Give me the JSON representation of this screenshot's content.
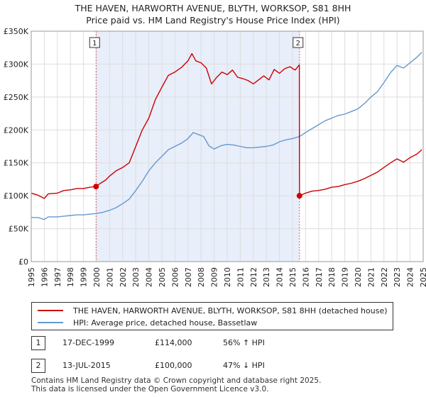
{
  "chart_data": {
    "type": "line",
    "title": "THE HAVEN, HARWORTH AVENUE, BLYTH, WORKSOP, S81 8HH",
    "subtitle": "Price paid vs. HM Land Registry's House Price Index (HPI)",
    "xlabel": "",
    "ylabel": "",
    "xlim": [
      1995,
      2025
    ],
    "ylim": [
      0,
      350000
    ],
    "y_ticks": [
      0,
      50000,
      100000,
      150000,
      200000,
      250000,
      300000,
      350000
    ],
    "y_tick_labels": [
      "£0",
      "£50K",
      "£100K",
      "£150K",
      "£200K",
      "£250K",
      "£300K",
      "£350K"
    ],
    "x_ticks": [
      1995,
      1996,
      1997,
      1998,
      1999,
      2000,
      2001,
      2002,
      2003,
      2004,
      2005,
      2006,
      2007,
      2008,
      2009,
      2010,
      2011,
      2012,
      2013,
      2014,
      2015,
      2016,
      2017,
      2018,
      2019,
      2020,
      2021,
      2022,
      2023,
      2024,
      2025
    ],
    "x_tick_labels": [
      "1995",
      "1996",
      "1997",
      "1998",
      "1999",
      "2000",
      "2001",
      "2002",
      "2003",
      "2004",
      "2005",
      "2006",
      "2007",
      "2008",
      "2009",
      "2010",
      "2011",
      "2012",
      "2013",
      "2014",
      "2015",
      "2016",
      "2017",
      "2018",
      "2019",
      "2020",
      "2021",
      "2022",
      "2023",
      "2024",
      "2025"
    ],
    "shaded_region": [
      1999.96,
      2015.53
    ],
    "series": [
      {
        "name": "THE HAVEN, HARWORTH AVENUE, BLYTH, WORKSOP, S81 8HH (detached house)",
        "color": "#cc0000",
        "points": [
          [
            1995.0,
            104000
          ],
          [
            1995.5,
            101000
          ],
          [
            1996.0,
            96000
          ],
          [
            1996.3,
            103000
          ],
          [
            1997.0,
            104000
          ],
          [
            1997.5,
            108000
          ],
          [
            1998.0,
            109000
          ],
          [
            1998.5,
            111000
          ],
          [
            1999.0,
            111000
          ],
          [
            1999.5,
            113000
          ],
          [
            1999.96,
            114000
          ],
          [
            2000.3,
            119000
          ],
          [
            2000.7,
            124000
          ],
          [
            2001.0,
            130000
          ],
          [
            2001.5,
            138000
          ],
          [
            2002.0,
            143000
          ],
          [
            2002.5,
            150000
          ],
          [
            2003.0,
            175000
          ],
          [
            2003.5,
            200000
          ],
          [
            2004.0,
            218000
          ],
          [
            2004.5,
            246000
          ],
          [
            2005.0,
            265000
          ],
          [
            2005.5,
            283000
          ],
          [
            2006.0,
            288000
          ],
          [
            2006.5,
            295000
          ],
          [
            2007.0,
            305000
          ],
          [
            2007.3,
            316000
          ],
          [
            2007.6,
            305000
          ],
          [
            2008.0,
            302000
          ],
          [
            2008.4,
            294000
          ],
          [
            2008.8,
            270000
          ],
          [
            2009.2,
            280000
          ],
          [
            2009.6,
            288000
          ],
          [
            2010.0,
            284000
          ],
          [
            2010.4,
            291000
          ],
          [
            2010.8,
            280000
          ],
          [
            2011.2,
            278000
          ],
          [
            2011.6,
            275000
          ],
          [
            2012.0,
            270000
          ],
          [
            2012.4,
            276000
          ],
          [
            2012.8,
            282000
          ],
          [
            2013.2,
            276000
          ],
          [
            2013.6,
            292000
          ],
          [
            2014.0,
            286000
          ],
          [
            2014.4,
            293000
          ],
          [
            2014.8,
            296000
          ],
          [
            2015.2,
            291000
          ],
          [
            2015.52,
            299000
          ],
          [
            2015.53,
            100000
          ],
          [
            2016.0,
            104000
          ],
          [
            2016.5,
            107000
          ],
          [
            2017.0,
            108000
          ],
          [
            2017.5,
            110000
          ],
          [
            2018.0,
            113000
          ],
          [
            2018.5,
            114000
          ],
          [
            2019.0,
            117000
          ],
          [
            2019.5,
            119000
          ],
          [
            2020.0,
            122000
          ],
          [
            2020.5,
            126000
          ],
          [
            2021.0,
            131000
          ],
          [
            2021.5,
            136000
          ],
          [
            2022.0,
            143000
          ],
          [
            2022.5,
            150000
          ],
          [
            2023.0,
            156000
          ],
          [
            2023.5,
            151000
          ],
          [
            2024.0,
            158000
          ],
          [
            2024.5,
            163000
          ],
          [
            2024.9,
            170000
          ]
        ]
      },
      {
        "name": "HPI: Average price, detached house, Bassetlaw",
        "color": "#6699cc",
        "points": [
          [
            1995.0,
            67000
          ],
          [
            1995.5,
            67000
          ],
          [
            1996.0,
            64000
          ],
          [
            1996.3,
            68000
          ],
          [
            1997.0,
            68000
          ],
          [
            1997.5,
            69000
          ],
          [
            1998.0,
            70000
          ],
          [
            1998.5,
            71000
          ],
          [
            1999.0,
            71000
          ],
          [
            1999.5,
            72000
          ],
          [
            1999.96,
            73000
          ],
          [
            2000.5,
            75000
          ],
          [
            2001.0,
            78000
          ],
          [
            2001.5,
            82000
          ],
          [
            2002.0,
            88000
          ],
          [
            2002.5,
            95000
          ],
          [
            2003.0,
            108000
          ],
          [
            2003.5,
            122000
          ],
          [
            2004.0,
            138000
          ],
          [
            2004.5,
            150000
          ],
          [
            2005.0,
            160000
          ],
          [
            2005.5,
            170000
          ],
          [
            2006.0,
            175000
          ],
          [
            2006.5,
            180000
          ],
          [
            2007.0,
            187000
          ],
          [
            2007.4,
            196000
          ],
          [
            2007.8,
            193000
          ],
          [
            2008.2,
            190000
          ],
          [
            2008.6,
            176000
          ],
          [
            2009.0,
            171000
          ],
          [
            2009.5,
            176000
          ],
          [
            2010.0,
            178000
          ],
          [
            2010.5,
            177000
          ],
          [
            2011.0,
            175000
          ],
          [
            2011.5,
            173000
          ],
          [
            2012.0,
            173000
          ],
          [
            2012.5,
            174000
          ],
          [
            2013.0,
            175000
          ],
          [
            2013.5,
            177000
          ],
          [
            2014.0,
            182000
          ],
          [
            2014.5,
            185000
          ],
          [
            2015.0,
            187000
          ],
          [
            2015.53,
            190000
          ],
          [
            2016.0,
            196000
          ],
          [
            2016.5,
            202000
          ],
          [
            2017.0,
            208000
          ],
          [
            2017.5,
            214000
          ],
          [
            2018.0,
            218000
          ],
          [
            2018.5,
            222000
          ],
          [
            2019.0,
            224000
          ],
          [
            2019.5,
            228000
          ],
          [
            2020.0,
            232000
          ],
          [
            2020.5,
            240000
          ],
          [
            2021.0,
            250000
          ],
          [
            2021.5,
            258000
          ],
          [
            2022.0,
            272000
          ],
          [
            2022.5,
            287000
          ],
          [
            2023.0,
            298000
          ],
          [
            2023.5,
            294000
          ],
          [
            2024.0,
            302000
          ],
          [
            2024.5,
            310000
          ],
          [
            2024.9,
            318000
          ]
        ]
      }
    ],
    "annotations": [
      {
        "label": "1",
        "x": 1999.96,
        "y": 114000
      },
      {
        "label": "2",
        "x": 2015.53,
        "y": 100000
      }
    ]
  },
  "legend": {
    "property_label": "THE HAVEN, HARWORTH AVENUE, BLYTH, WORKSOP, S81 8HH (detached house)",
    "hpi_label": "HPI: Average price, detached house, Bassetlaw"
  },
  "sales": [
    {
      "num": "1",
      "date": "17-DEC-1999",
      "price": "£114,000",
      "hpi": "56% ↑ HPI"
    },
    {
      "num": "2",
      "date": "13-JUL-2015",
      "price": "£100,000",
      "hpi": "47% ↓ HPI"
    }
  ],
  "footer": {
    "line1": "Contains HM Land Registry data © Crown copyright and database right 2025.",
    "line2": "This data is licensed under the Open Government Licence v3.0."
  }
}
